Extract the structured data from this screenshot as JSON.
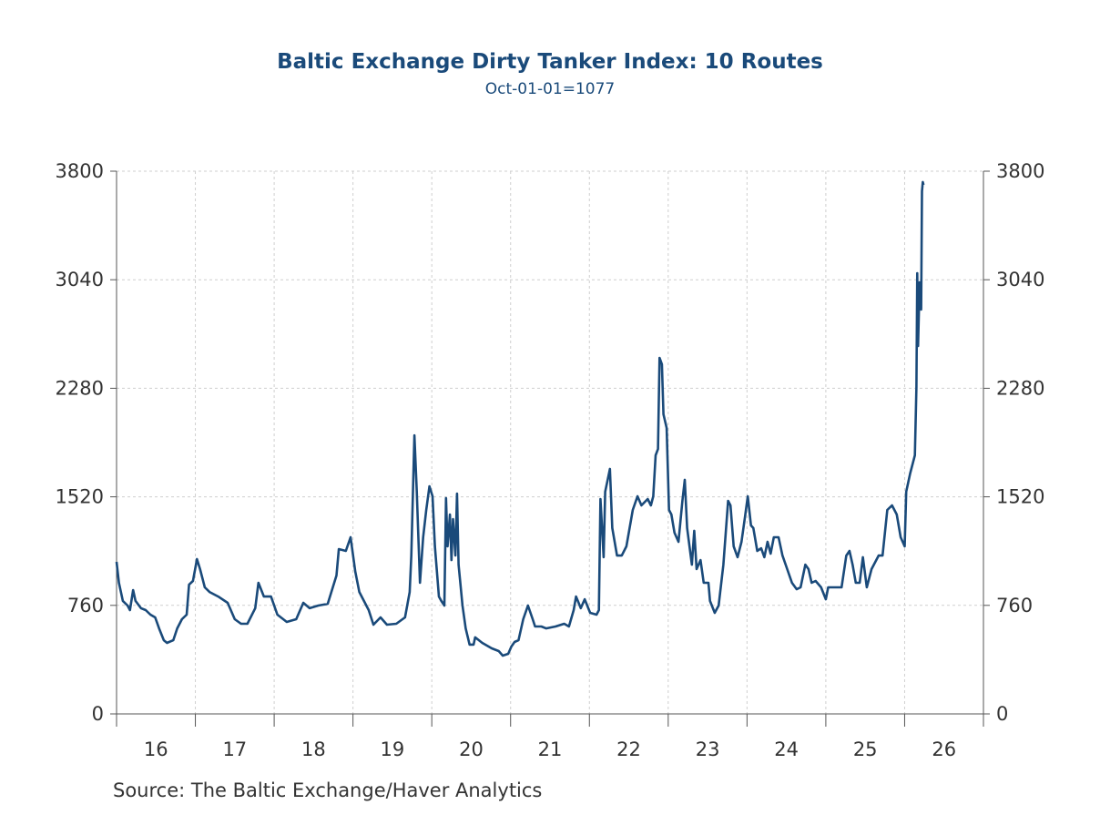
{
  "chart_data": {
    "type": "line",
    "title": "Baltic Exchange Dirty Tanker Index: 10 Routes",
    "subtitle": "Oct-01-01=1077",
    "source": "Source:  The Baltic Exchange/Haver Analytics",
    "xlabel": "",
    "ylabel": "",
    "xlim": [
      2016,
      2027
    ],
    "ylim": [
      0,
      3800
    ],
    "y_ticks": [
      0,
      760,
      1520,
      2280,
      3040,
      3800
    ],
    "x_tick_labels": [
      "16",
      "17",
      "18",
      "19",
      "20",
      "21",
      "22",
      "23",
      "24",
      "25",
      "26"
    ],
    "grid": true,
    "dual_y_axis": true,
    "line_color": "#1a4a7a",
    "x": [
      2016.0,
      2016.03,
      2016.08,
      2016.14,
      2016.17,
      2016.21,
      2016.24,
      2016.31,
      2016.37,
      2016.43,
      2016.49,
      2016.54,
      2016.6,
      2016.64,
      2016.72,
      2016.77,
      2016.83,
      2016.89,
      2016.92,
      2016.97,
      2017.02,
      2017.06,
      2017.12,
      2017.18,
      2017.29,
      2017.41,
      2017.5,
      2017.58,
      2017.66,
      2017.76,
      2017.8,
      2017.87,
      2017.96,
      2018.04,
      2018.16,
      2018.28,
      2018.37,
      2018.45,
      2018.56,
      2018.68,
      2018.79,
      2018.82,
      2018.91,
      2018.97,
      2019.03,
      2019.08,
      2019.2,
      2019.26,
      2019.35,
      2019.43,
      2019.55,
      2019.66,
      2019.72,
      2019.74,
      2019.78,
      2019.81,
      2019.85,
      2019.89,
      2019.93,
      2019.97,
      2020.01,
      2020.04,
      2020.09,
      2020.12,
      2020.16,
      2020.18,
      2020.2,
      2020.23,
      2020.25,
      2020.27,
      2020.3,
      2020.32,
      2020.34,
      2020.39,
      2020.43,
      2020.48,
      2020.53,
      2020.55,
      2020.64,
      2020.76,
      2020.85,
      2020.9,
      2020.97,
      2021.01,
      2021.05,
      2021.1,
      2021.16,
      2021.22,
      2021.28,
      2021.31,
      2021.39,
      2021.45,
      2021.57,
      2021.68,
      2021.74,
      2021.8,
      2021.83,
      2021.89,
      2021.94,
      2022.01,
      2022.09,
      2022.12,
      2022.14,
      2022.18,
      2022.2,
      2022.26,
      2022.29,
      2022.35,
      2022.41,
      2022.47,
      2022.55,
      2022.61,
      2022.66,
      2022.74,
      2022.78,
      2022.81,
      2022.84,
      2022.87,
      2022.89,
      2022.92,
      2022.94,
      2022.98,
      2023.01,
      2023.04,
      2023.08,
      2023.13,
      2023.18,
      2023.21,
      2023.24,
      2023.3,
      2023.33,
      2023.36,
      2023.41,
      2023.45,
      2023.51,
      2023.53,
      2023.59,
      2023.64,
      2023.7,
      2023.76,
      2023.79,
      2023.83,
      2023.88,
      2023.93,
      2023.97,
      2024.01,
      2024.05,
      2024.08,
      2024.13,
      2024.18,
      2024.22,
      2024.26,
      2024.3,
      2024.34,
      2024.4,
      2024.45,
      2024.51,
      2024.57,
      2024.63,
      2024.68,
      2024.74,
      2024.78,
      2024.82,
      2024.87,
      2024.94,
      2025.0,
      2025.03,
      2025.09,
      2025.15,
      2025.2,
      2025.26,
      2025.3,
      2025.34,
      2025.38,
      2025.43,
      2025.47,
      2025.52,
      2025.58,
      2025.67,
      2025.72,
      2025.78,
      2025.84,
      2025.9,
      2025.95,
      2026.0,
      2026.02,
      2026.07,
      2026.13,
      2026.15,
      2026.16,
      2026.17,
      2026.19,
      2026.2,
      2026.21,
      2026.22,
      2026.23,
      2026.24
    ],
    "values": [
      1065,
      918,
      791,
      759,
      727,
      867,
      791,
      740,
      727,
      695,
      676,
      599,
      516,
      497,
      516,
      599,
      663,
      695,
      905,
      931,
      1084,
      1014,
      886,
      854,
      822,
      778,
      663,
      631,
      631,
      740,
      918,
      822,
      822,
      695,
      644,
      663,
      778,
      740,
      759,
      771,
      969,
      1154,
      1141,
      1237,
      995,
      854,
      727,
      625,
      676,
      625,
      631,
      676,
      854,
      1109,
      1951,
      1556,
      918,
      1237,
      1428,
      1594,
      1524,
      1173,
      822,
      791,
      759,
      1511,
      1173,
      1396,
      1077,
      1364,
      1109,
      1543,
      1045,
      759,
      599,
      485,
      485,
      536,
      497,
      459,
      440,
      408,
      421,
      472,
      504,
      516,
      663,
      759,
      663,
      612,
      612,
      599,
      612,
      631,
      612,
      727,
      822,
      740,
      803,
      708,
      695,
      727,
      1505,
      1097,
      1556,
      1715,
      1301,
      1109,
      1109,
      1173,
      1428,
      1524,
      1460,
      1505,
      1460,
      1524,
      1811,
      1855,
      2493,
      2448,
      2098,
      2002,
      1428,
      1396,
      1269,
      1205,
      1492,
      1639,
      1301,
      1045,
      1282,
      1014,
      1077,
      918,
      918,
      791,
      708,
      759,
      1045,
      1492,
      1460,
      1173,
      1097,
      1205,
      1364,
      1524,
      1320,
      1301,
      1141,
      1160,
      1097,
      1205,
      1122,
      1237,
      1237,
      1109,
      1014,
      918,
      873,
      886,
      1045,
      1014,
      918,
      931,
      886,
      803,
      886,
      886,
      886,
      886,
      1109,
      1141,
      1045,
      918,
      918,
      1097,
      886,
      1014,
      1109,
      1109,
      1428,
      1460,
      1396,
      1237,
      1173,
      1556,
      1683,
      1811,
      2289,
      3086,
      2576,
      3022,
      2895,
      2831,
      3660,
      3724,
      3704
    ]
  }
}
